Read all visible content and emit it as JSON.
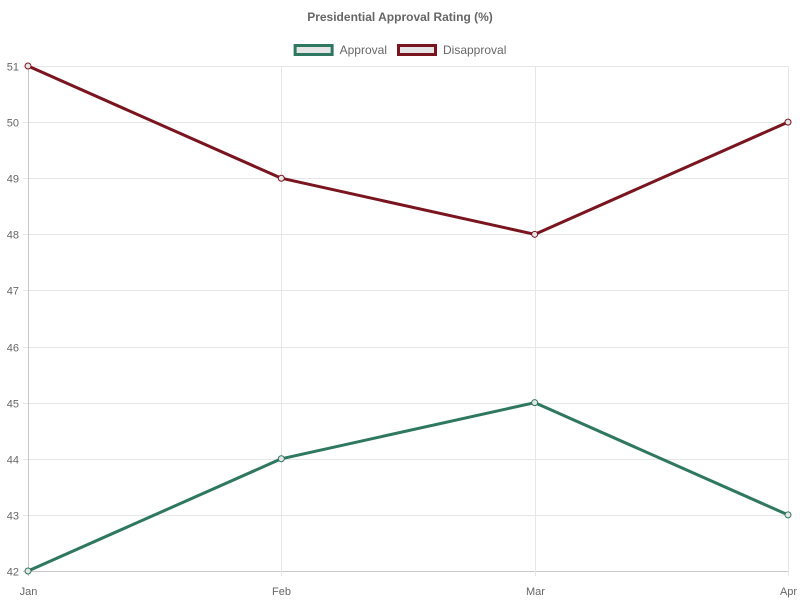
{
  "chart_data": {
    "type": "line",
    "title": "Presidential Approval Rating (%)",
    "categories": [
      "Jan",
      "Feb",
      "Mar",
      "Apr"
    ],
    "series": [
      {
        "name": "Approval",
        "values": [
          42,
          44,
          45,
          43
        ],
        "color": "#2e7760"
      },
      {
        "name": "Disapproval",
        "values": [
          51,
          49,
          48,
          50
        ],
        "color": "#7a1520"
      }
    ],
    "ylim": [
      42,
      51
    ],
    "yticks": [
      42,
      43,
      44,
      45,
      46,
      47,
      48,
      49,
      50,
      51
    ],
    "xlabel": "",
    "ylabel": "",
    "grid": true,
    "legend_position": "top-center",
    "legend_fill": "#e5e5e5"
  }
}
